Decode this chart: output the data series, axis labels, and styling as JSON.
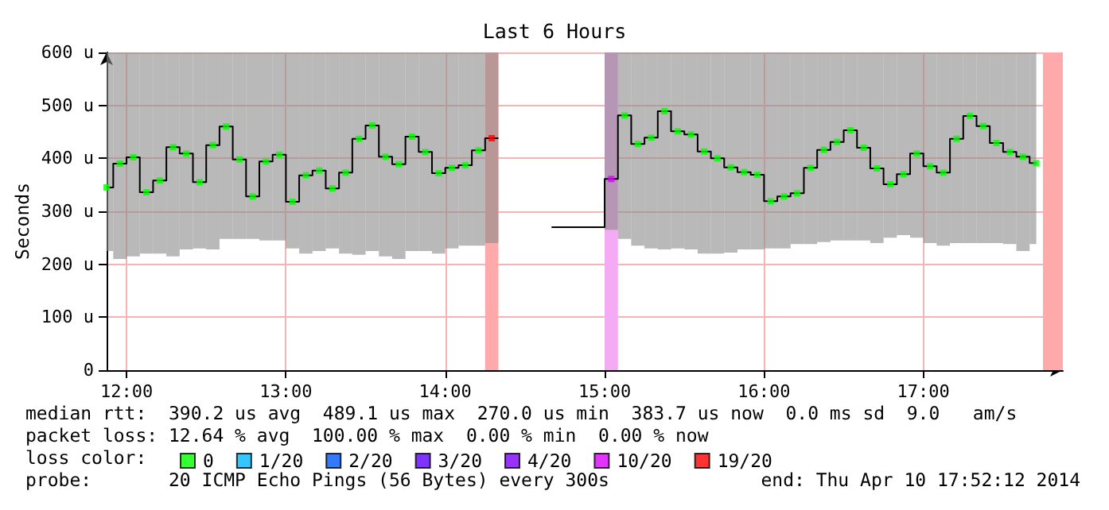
{
  "chart_data": {
    "type": "step",
    "title": "Last 6 Hours",
    "ylabel": "Seconds",
    "legend_title": "loss color:",
    "legend": "bottom",
    "grid": true,
    "marker": "square",
    "xlim": [
      11.875,
      17.875
    ],
    "ylim": [
      0,
      600
    ],
    "xticks": [
      {
        "value": 12,
        "label": "12:00"
      },
      {
        "value": 13,
        "label": "13:00"
      },
      {
        "value": 14,
        "label": "14:00"
      },
      {
        "value": 15,
        "label": "15:00"
      },
      {
        "value": 16,
        "label": "16:00"
      },
      {
        "value": 17,
        "label": "17:00"
      }
    ],
    "yticks": [
      0,
      {
        "value": 100,
        "label": "100 u"
      },
      {
        "value": 200,
        "label": "200 u"
      },
      {
        "value": 300,
        "label": "300 u"
      },
      {
        "value": 400,
        "label": "400 u"
      },
      {
        "value": 500,
        "label": "500 u"
      },
      {
        "value": 600,
        "label": "600 u"
      }
    ],
    "x": [
      11.875,
      11.9583,
      12.0417,
      12.125,
      12.2083,
      12.2917,
      12.375,
      12.4583,
      12.5417,
      12.625,
      12.7083,
      12.7917,
      12.875,
      12.9583,
      13.0417,
      13.125,
      13.2083,
      13.2917,
      13.375,
      13.4583,
      13.5417,
      13.625,
      13.7083,
      13.7917,
      13.875,
      13.9583,
      14.0417,
      14.125,
      14.2083,
      14.2917,
      14.375,
      14.9583,
      15.0417,
      15.125,
      15.2083,
      15.2917,
      15.375,
      15.4583,
      15.5417,
      15.625,
      15.7083,
      15.7917,
      15.875,
      15.9583,
      16.0417,
      16.125,
      16.2083,
      16.2917,
      16.375,
      16.4583,
      16.5417,
      16.625,
      16.7083,
      16.7917,
      16.875,
      16.9583,
      17.0417,
      17.125,
      17.2083,
      17.2917,
      17.375,
      17.4583,
      17.5417,
      17.625,
      17.7083
    ],
    "series": [
      {
        "color": "#000000",
        "marker": "none",
        "values": [
          345,
          390,
          402,
          336,
          358,
          421,
          409,
          355,
          425,
          460,
          398,
          328,
          394,
          407,
          318,
          368,
          377,
          343,
          373,
          437,
          462,
          403,
          389,
          441,
          412,
          372,
          382,
          387,
          415,
          438,
          null,
          270,
          361,
          481,
          427,
          439,
          489,
          451,
          445,
          413,
          400,
          383,
          374,
          369,
          319,
          328,
          334,
          382,
          416,
          431,
          453,
          420,
          381,
          351,
          370,
          409,
          385,
          373,
          437,
          480,
          461,
          429,
          412,
          403,
          391
        ],
        "lower": [
          225,
          210,
          215,
          220,
          220,
          215,
          228,
          230,
          228,
          248,
          248,
          248,
          245,
          245,
          230,
          220,
          225,
          230,
          220,
          218,
          225,
          215,
          210,
          225,
          225,
          220,
          230,
          235,
          235,
          240,
          null,
          null,
          265,
          248,
          235,
          230,
          228,
          230,
          228,
          220,
          220,
          222,
          228,
          228,
          230,
          230,
          238,
          238,
          242,
          245,
          245,
          245,
          240,
          250,
          255,
          250,
          240,
          235,
          240,
          240,
          240,
          240,
          238,
          225,
          238
        ],
        "upper": [
          600,
          600,
          600,
          600,
          600,
          600,
          600,
          600,
          600,
          600,
          600,
          600,
          600,
          600,
          600,
          600,
          600,
          600,
          600,
          600,
          600,
          600,
          600,
          600,
          600,
          600,
          600,
          600,
          600,
          600,
          null,
          null,
          600,
          600,
          600,
          600,
          600,
          600,
          600,
          600,
          600,
          600,
          600,
          600,
          600,
          600,
          600,
          600,
          600,
          600,
          600,
          600,
          600,
          600,
          600,
          600,
          600,
          600,
          600,
          600,
          600,
          600,
          600,
          600,
          600
        ]
      },
      {
        "type": "scatter",
        "name": "0",
        "color": "#00ff00",
        "values": [
          345,
          390,
          402,
          336,
          358,
          421,
          409,
          355,
          425,
          460,
          398,
          328,
          394,
          407,
          318,
          368,
          377,
          343,
          373,
          437,
          462,
          403,
          389,
          441,
          412,
          372,
          382,
          387,
          415,
          null,
          null,
          null,
          null,
          481,
          427,
          439,
          489,
          451,
          445,
          413,
          400,
          383,
          374,
          369,
          319,
          328,
          334,
          382,
          416,
          431,
          453,
          420,
          381,
          351,
          370,
          409,
          385,
          373,
          437,
          480,
          461,
          429,
          412,
          403,
          391
        ]
      },
      {
        "type": "scatter",
        "name": "1/20",
        "color": "#00b8ff",
        "values": [
          null,
          null,
          null,
          null,
          null,
          null,
          null,
          null,
          null,
          null,
          null,
          null,
          null,
          null,
          null,
          null,
          null,
          null,
          null,
          null,
          null,
          null,
          null,
          null,
          null,
          null,
          null,
          null,
          null,
          null,
          null,
          null,
          null,
          null,
          null,
          null,
          null,
          null,
          null,
          null,
          null,
          null,
          null,
          null,
          null,
          null,
          null,
          null,
          null,
          null,
          null,
          null,
          null,
          null,
          null,
          null,
          null,
          null,
          null,
          null,
          null,
          null,
          null,
          null,
          null
        ]
      },
      {
        "type": "scatter",
        "name": "2/20",
        "color": "#0059ff",
        "values": [
          null,
          null,
          null,
          null,
          null,
          null,
          null,
          null,
          null,
          null,
          null,
          null,
          null,
          null,
          null,
          null,
          null,
          null,
          null,
          null,
          null,
          null,
          null,
          null,
          null,
          null,
          null,
          null,
          null,
          null,
          null,
          null,
          null,
          null,
          null,
          null,
          null,
          null,
          null,
          null,
          null,
          null,
          null,
          null,
          null,
          null,
          null,
          null,
          null,
          null,
          null,
          null,
          null,
          null,
          null,
          null,
          null,
          null,
          null,
          null,
          null,
          null,
          null,
          null,
          null
        ]
      },
      {
        "type": "scatter",
        "name": "3/20",
        "color": "#5e00ff",
        "values": [
          null,
          null,
          null,
          null,
          null,
          null,
          null,
          null,
          null,
          null,
          null,
          null,
          null,
          null,
          null,
          null,
          null,
          null,
          null,
          null,
          null,
          null,
          null,
          null,
          null,
          null,
          null,
          null,
          null,
          null,
          null,
          null,
          null,
          null,
          null,
          null,
          null,
          null,
          null,
          null,
          null,
          null,
          null,
          null,
          null,
          null,
          null,
          null,
          null,
          null,
          null,
          null,
          null,
          null,
          null,
          null,
          null,
          null,
          null,
          null,
          null,
          null,
          null,
          null,
          null
        ]
      },
      {
        "type": "scatter",
        "name": "4/20",
        "color": "#7e00ff",
        "values": [
          null,
          null,
          null,
          null,
          null,
          null,
          null,
          null,
          null,
          null,
          null,
          null,
          null,
          null,
          null,
          null,
          null,
          null,
          null,
          null,
          null,
          null,
          null,
          null,
          null,
          null,
          null,
          null,
          null,
          null,
          null,
          null,
          null,
          null,
          null,
          null,
          null,
          null,
          null,
          null,
          null,
          null,
          null,
          null,
          null,
          null,
          null,
          null,
          null,
          null,
          null,
          null,
          null,
          null,
          null,
          null,
          null,
          null,
          null,
          null,
          null,
          null,
          null,
          null,
          null
        ]
      },
      {
        "type": "scatter",
        "name": "10/20",
        "color": "#dd00ff",
        "values": [
          null,
          null,
          null,
          null,
          null,
          null,
          null,
          null,
          null,
          null,
          null,
          null,
          null,
          null,
          null,
          null,
          null,
          null,
          null,
          null,
          null,
          null,
          null,
          null,
          null,
          null,
          null,
          null,
          null,
          null,
          null,
          null,
          361,
          null,
          null,
          null,
          null,
          null,
          null,
          null,
          null,
          null,
          null,
          null,
          null,
          null,
          null,
          null,
          null,
          null,
          null,
          null,
          null,
          null,
          null,
          null,
          null,
          null,
          null,
          null,
          null,
          null,
          null,
          null,
          null
        ]
      },
      {
        "type": "scatter",
        "name": "19/20",
        "color": "#ff0000",
        "values": [
          null,
          null,
          null,
          null,
          null,
          null,
          null,
          null,
          null,
          null,
          null,
          null,
          null,
          null,
          null,
          null,
          null,
          null,
          null,
          null,
          null,
          null,
          null,
          null,
          null,
          null,
          null,
          null,
          null,
          438,
          null,
          null,
          null,
          null,
          null,
          null,
          null,
          null,
          null,
          null,
          null,
          null,
          null,
          null,
          null,
          null,
          null,
          null,
          null,
          null,
          null,
          null,
          null,
          null,
          null,
          null,
          null,
          null,
          null,
          null,
          null,
          null,
          null,
          null,
          null
        ]
      }
    ],
    "bands": [
      {
        "axis": "x",
        "from": 14.25,
        "to": 14.3333,
        "color": "#ffaaaa"
      },
      {
        "axis": "x",
        "from": 15,
        "to": 15.0833,
        "color": "#f4aaf4"
      },
      {
        "axis": "x",
        "from": 17.75,
        "to": 17.875,
        "color": "#ffaaaa"
      }
    ],
    "annotations": [
      "median rtt:  390.2 us avg  489.1 us max  270.0 us min  383.7 us now  0.0 ms sd  9.0   am/s",
      "packet loss: 12.64 % avg  100.00 % max  0.00 % min  0.00 % now",
      "probe:       20 ICMP Echo Pings (56 Bytes) every 300s",
      "end: Thu Apr 10 17:52:12 2014"
    ]
  }
}
